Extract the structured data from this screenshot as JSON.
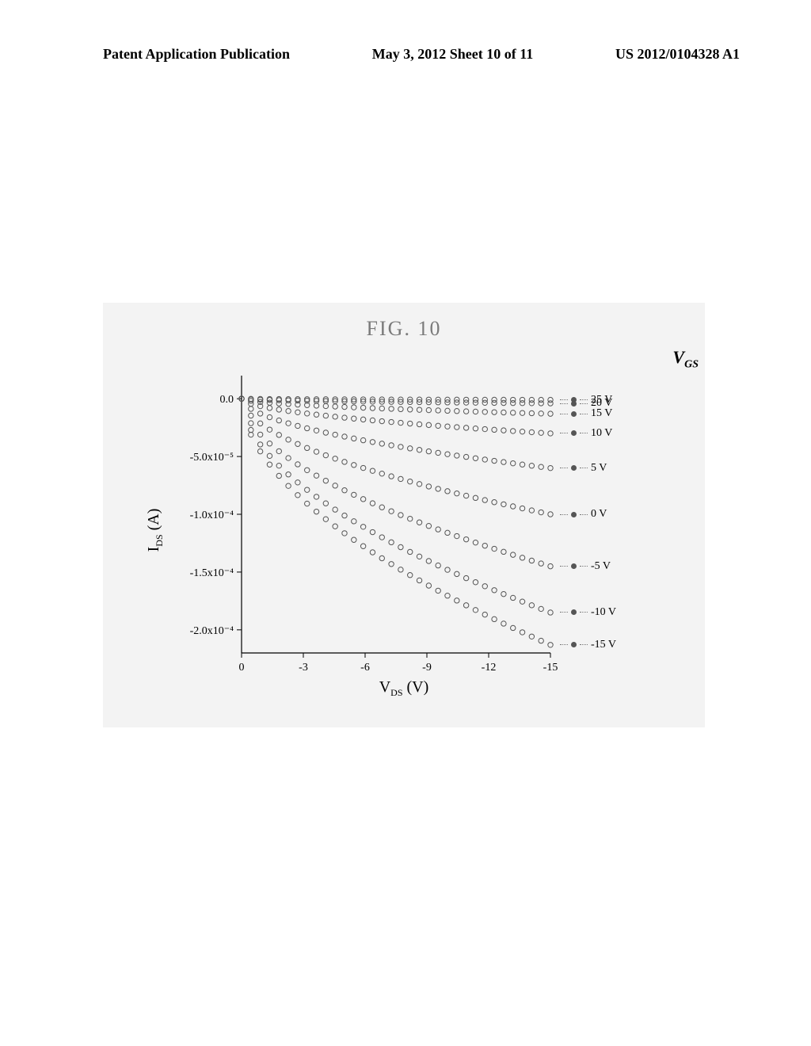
{
  "header": {
    "left": "Patent Application Publication",
    "middle": "May 3, 2012  Sheet 10 of 11",
    "right": "US 2012/0104328 A1"
  },
  "figure": {
    "title": "FIG. 10",
    "background_box_color": "#f3f3f3",
    "chart": {
      "type": "scatter",
      "xlabel": "V_DS (V)",
      "ylabel": "I_DS (A)",
      "xlim": [
        0,
        -15
      ],
      "ylim": [
        -0.00022,
        2e-05
      ],
      "xticks": [
        0,
        -3,
        -6,
        -9,
        -12,
        -15
      ],
      "ytick_labels": [
        "0.0",
        "-5.0x10⁻⁵",
        "-1.0x10⁻⁴",
        "-1.5x10⁻⁴",
        "-2.0x10⁻⁴"
      ],
      "ytick_values": [
        0.0,
        -5e-05,
        -0.0001,
        -0.00015,
        -0.0002
      ],
      "axis_color": "#000000",
      "marker_color": "#555555",
      "marker_size": 3.2,
      "tick_fontsize": 14,
      "label_fontsize": 20,
      "legend_title": "V_GS",
      "legend_fontsize": 14,
      "series": [
        {
          "label": "25 V",
          "vgs": 25,
          "end_y": -1e-06
        },
        {
          "label": "20 V",
          "vgs": 20,
          "end_y": -4e-06
        },
        {
          "label": "15 V",
          "vgs": 15,
          "end_y": -1.3e-05
        },
        {
          "label": "10 V",
          "vgs": 10,
          "end_y": -3e-05
        },
        {
          "label": "5 V",
          "vgs": 5,
          "end_y": -6e-05
        },
        {
          "label": "0 V",
          "vgs": 0,
          "end_y": -0.0001
        },
        {
          "label": "-5 V",
          "vgs": -5,
          "end_y": -0.000145
        },
        {
          "label": "-10 V",
          "vgs": -10,
          "end_y": -0.000185
        },
        {
          "label": "-15 V",
          "vgs": -15,
          "end_y": -0.000213
        }
      ],
      "n_points_per_series": 34
    }
  }
}
